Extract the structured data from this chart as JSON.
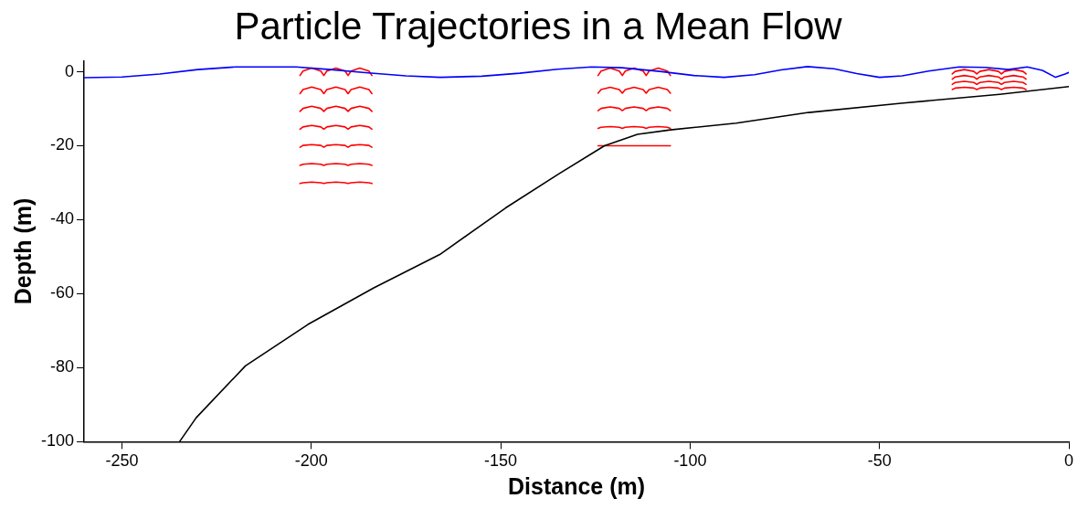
{
  "chart_data": {
    "type": "line",
    "title": "Particle Trajectories in a Mean Flow",
    "xlabel": "Distance (m)",
    "ylabel": "Depth (m)",
    "xlim": [
      -260,
      0
    ],
    "xticks": [
      -250,
      -200,
      -150,
      -100,
      -50,
      0
    ],
    "ylim": [
      -100,
      3
    ],
    "yticks": [
      -100,
      -80,
      -60,
      -40,
      -20,
      0
    ],
    "grid": false,
    "legend": false,
    "marker": "none",
    "line_style": "solid",
    "series": [
      {
        "color": "#0000ff",
        "x": [
          -260,
          -250,
          -240,
          -230,
          -220,
          -204,
          -195,
          -185,
          -175,
          -166,
          -155,
          -145,
          -135,
          -126,
          -118,
          -108,
          -99,
          -91,
          -83,
          -76,
          -69,
          -62,
          -56,
          -50,
          -44,
          -37,
          -29,
          -22,
          -16,
          -11,
          -7,
          -3.5,
          -1,
          0
        ],
        "values": [
          -1.6,
          -1.4,
          -0.6,
          0.6,
          1.3,
          1.3,
          0.6,
          -0.3,
          -1.1,
          -1.5,
          -1.2,
          -0.4,
          0.7,
          1.3,
          1.1,
          0.1,
          -1,
          -1.5,
          -0.8,
          0.5,
          1.4,
          0.8,
          -0.5,
          -1.5,
          -1.1,
          0.2,
          1.3,
          1.2,
          0.6,
          1.3,
          0.4,
          -1.5,
          -0.6,
          -0.2
        ]
      },
      {
        "color": "#000000",
        "x": [
          -234.8,
          -230.4,
          -217.4,
          -200.9,
          -183.5,
          -166.1,
          -148.7,
          -134.8,
          -122.6,
          -113.9,
          -105.2,
          -87.8,
          -68.7,
          -44.3,
          -18.3,
          0
        ],
        "values": [
          -100,
          -93.5,
          -79.5,
          -68.3,
          -58.4,
          -49.4,
          -36.8,
          -27.7,
          -20,
          -16.9,
          -15.7,
          -13.9,
          -11,
          -8.5,
          -6.1,
          -4
        ]
      },
      {
        "color": "#ff0000",
        "x": [
          -203,
          -202.2,
          -199.9,
          -197.5,
          -196.7,
          -195.9,
          -193.5,
          -191.1,
          -190.3,
          -189.5,
          -187.2,
          -184.8,
          -184
        ],
        "values": [
          -1,
          0.2,
          1,
          0.2,
          -1,
          0.2,
          1,
          0.2,
          -1,
          0.2,
          1,
          0.2,
          -1
        ]
      },
      {
        "color": "#ff0000",
        "x": [
          -203,
          -202.2,
          -199.9,
          -197.5,
          -196.7,
          -195.9,
          -193.5,
          -191.1,
          -190.3,
          -189.5,
          -187.2,
          -184.8,
          -184
        ],
        "values": [
          -5.9,
          -4.8,
          -4.1,
          -4.8,
          -5.9,
          -4.8,
          -4.1,
          -4.8,
          -5.9,
          -4.8,
          -4.1,
          -4.8,
          -5.9
        ]
      },
      {
        "color": "#ff0000",
        "x": [
          -203,
          -202.2,
          -199.9,
          -197.5,
          -196.7,
          -195.9,
          -193.5,
          -191.1,
          -190.3,
          -189.5,
          -187.2,
          -184.8,
          -184
        ],
        "values": [
          -10.7,
          -9.9,
          -9.3,
          -9.9,
          -10.7,
          -9.9,
          -9.3,
          -9.9,
          -10.7,
          -9.9,
          -9.3,
          -9.9,
          -10.7
        ]
      },
      {
        "color": "#ff0000",
        "x": [
          -203,
          -202.2,
          -199.9,
          -197.5,
          -196.7,
          -195.9,
          -193.5,
          -191.1,
          -190.3,
          -189.5,
          -187.2,
          -184.8,
          -184
        ],
        "values": [
          -15.5,
          -14.9,
          -14.5,
          -14.9,
          -15.5,
          -14.9,
          -14.5,
          -14.9,
          -15.5,
          -14.9,
          -14.5,
          -14.9,
          -15.5
        ]
      },
      {
        "color": "#ff0000",
        "x": [
          -203,
          -202.2,
          -199.9,
          -197.5,
          -196.7,
          -195.9,
          -193.5,
          -191.1,
          -190.3,
          -189.5,
          -187.2,
          -184.8,
          -184
        ],
        "values": [
          -20.4,
          -19.9,
          -19.7,
          -19.9,
          -20.4,
          -19.9,
          -19.7,
          -19.9,
          -20.4,
          -19.9,
          -19.7,
          -19.9,
          -20.4
        ]
      },
      {
        "color": "#ff0000",
        "x": [
          -203,
          -202.2,
          -199.9,
          -197.5,
          -196.7,
          -195.9,
          -193.5,
          -191.1,
          -190.3,
          -189.5,
          -187.2,
          -184.8,
          -184
        ],
        "values": [
          -25.3,
          -25,
          -24.8,
          -25,
          -25.3,
          -25,
          -24.8,
          -25,
          -25.3,
          -25,
          -24.8,
          -25,
          -25.3
        ]
      },
      {
        "color": "#ff0000",
        "x": [
          -203,
          -202.2,
          -199.9,
          -197.5,
          -196.7,
          -195.9,
          -193.5,
          -191.1,
          -190.3,
          -189.5,
          -187.2,
          -184.8,
          -184
        ],
        "values": [
          -30.2,
          -30,
          -29.8,
          -30,
          -30.2,
          -30,
          -29.8,
          -30,
          -30.2,
          -30,
          -29.8,
          -30,
          -30.2
        ]
      },
      {
        "color": "#ff0000",
        "x": [
          -124.3,
          -123.5,
          -121.1,
          -118.7,
          -117.9,
          -117.1,
          -114.8,
          -112.4,
          -111.6,
          -110.8,
          -108.4,
          -106,
          -105.2
        ],
        "values": [
          -1,
          0.2,
          1,
          0.2,
          -1,
          0.2,
          1,
          0.2,
          -1,
          0.2,
          1,
          0.2,
          -1
        ]
      },
      {
        "color": "#ff0000",
        "x": [
          -124.3,
          -123.5,
          -121.1,
          -118.7,
          -117.9,
          -117.1,
          -114.8,
          -112.4,
          -111.6,
          -110.8,
          -108.4,
          -106,
          -105.2
        ],
        "values": [
          -5.8,
          -4.8,
          -4.2,
          -4.8,
          -5.8,
          -4.8,
          -4.2,
          -4.8,
          -5.8,
          -4.8,
          -4.2,
          -4.8,
          -5.8
        ]
      },
      {
        "color": "#ff0000",
        "x": [
          -124.3,
          -123.5,
          -121.1,
          -118.7,
          -117.9,
          -117.1,
          -114.8,
          -112.4,
          -111.6,
          -110.8,
          -108.4,
          -106,
          -105.2
        ],
        "values": [
          -10.5,
          -9.9,
          -9.5,
          -9.9,
          -10.5,
          -9.9,
          -9.5,
          -9.9,
          -10.5,
          -9.9,
          -9.5,
          -9.9,
          -10.5
        ]
      },
      {
        "color": "#ff0000",
        "x": [
          -124.3,
          -123.5,
          -121.1,
          -118.7,
          -117.9,
          -117.1,
          -114.8,
          -112.4,
          -111.6,
          -110.8,
          -108.4,
          -106,
          -105.2
        ],
        "values": [
          -15.3,
          -15,
          -14.8,
          -15,
          -15.3,
          -15,
          -14.8,
          -15,
          -15.3,
          -15,
          -14.8,
          -15,
          -15.3
        ]
      },
      {
        "color": "#ff0000",
        "x": [
          -124.3,
          -105.2
        ],
        "values": [
          -20,
          -20
        ]
      },
      {
        "color": "#ff0000",
        "x": [
          -30.8,
          -30,
          -27.6,
          -25.1,
          -24.3,
          -23.5,
          -21.1,
          -18.6,
          -17.8,
          -17,
          -14.6,
          -12.1,
          -11.3
        ],
        "values": [
          -0.6,
          0.1,
          0.6,
          0.1,
          -0.6,
          0.1,
          0.6,
          0.1,
          -0.6,
          0.1,
          0.6,
          0.1,
          -0.6
        ]
      },
      {
        "color": "#ff0000",
        "x": [
          -30.8,
          -30,
          -27.6,
          -25.1,
          -24.3,
          -23.5,
          -21.1,
          -18.6,
          -17.8,
          -17,
          -14.6,
          -12.1,
          -11.3
        ],
        "values": [
          -2,
          -1.4,
          -1,
          -1.4,
          -2,
          -1.4,
          -1,
          -1.4,
          -2,
          -1.4,
          -1,
          -1.4,
          -2
        ]
      },
      {
        "color": "#ff0000",
        "x": [
          -30.8,
          -30,
          -27.6,
          -25.1,
          -24.3,
          -23.5,
          -21.1,
          -18.6,
          -17.8,
          -17,
          -14.6,
          -12.1,
          -11.3
        ],
        "values": [
          -3.4,
          -2.9,
          -2.6,
          -2.9,
          -3.4,
          -2.9,
          -2.6,
          -2.9,
          -3.4,
          -2.9,
          -2.6,
          -2.9,
          -3.4
        ]
      },
      {
        "color": "#ff0000",
        "x": [
          -30.8,
          -30,
          -27.6,
          -25.1,
          -24.3,
          -23.5,
          -21.1,
          -18.6,
          -17.8,
          -17,
          -14.6,
          -12.1,
          -11.3
        ],
        "values": [
          -4.8,
          -4.4,
          -4.2,
          -4.4,
          -4.8,
          -4.4,
          -4.2,
          -4.4,
          -4.8,
          -4.4,
          -4.2,
          -4.4,
          -4.8
        ]
      }
    ]
  }
}
